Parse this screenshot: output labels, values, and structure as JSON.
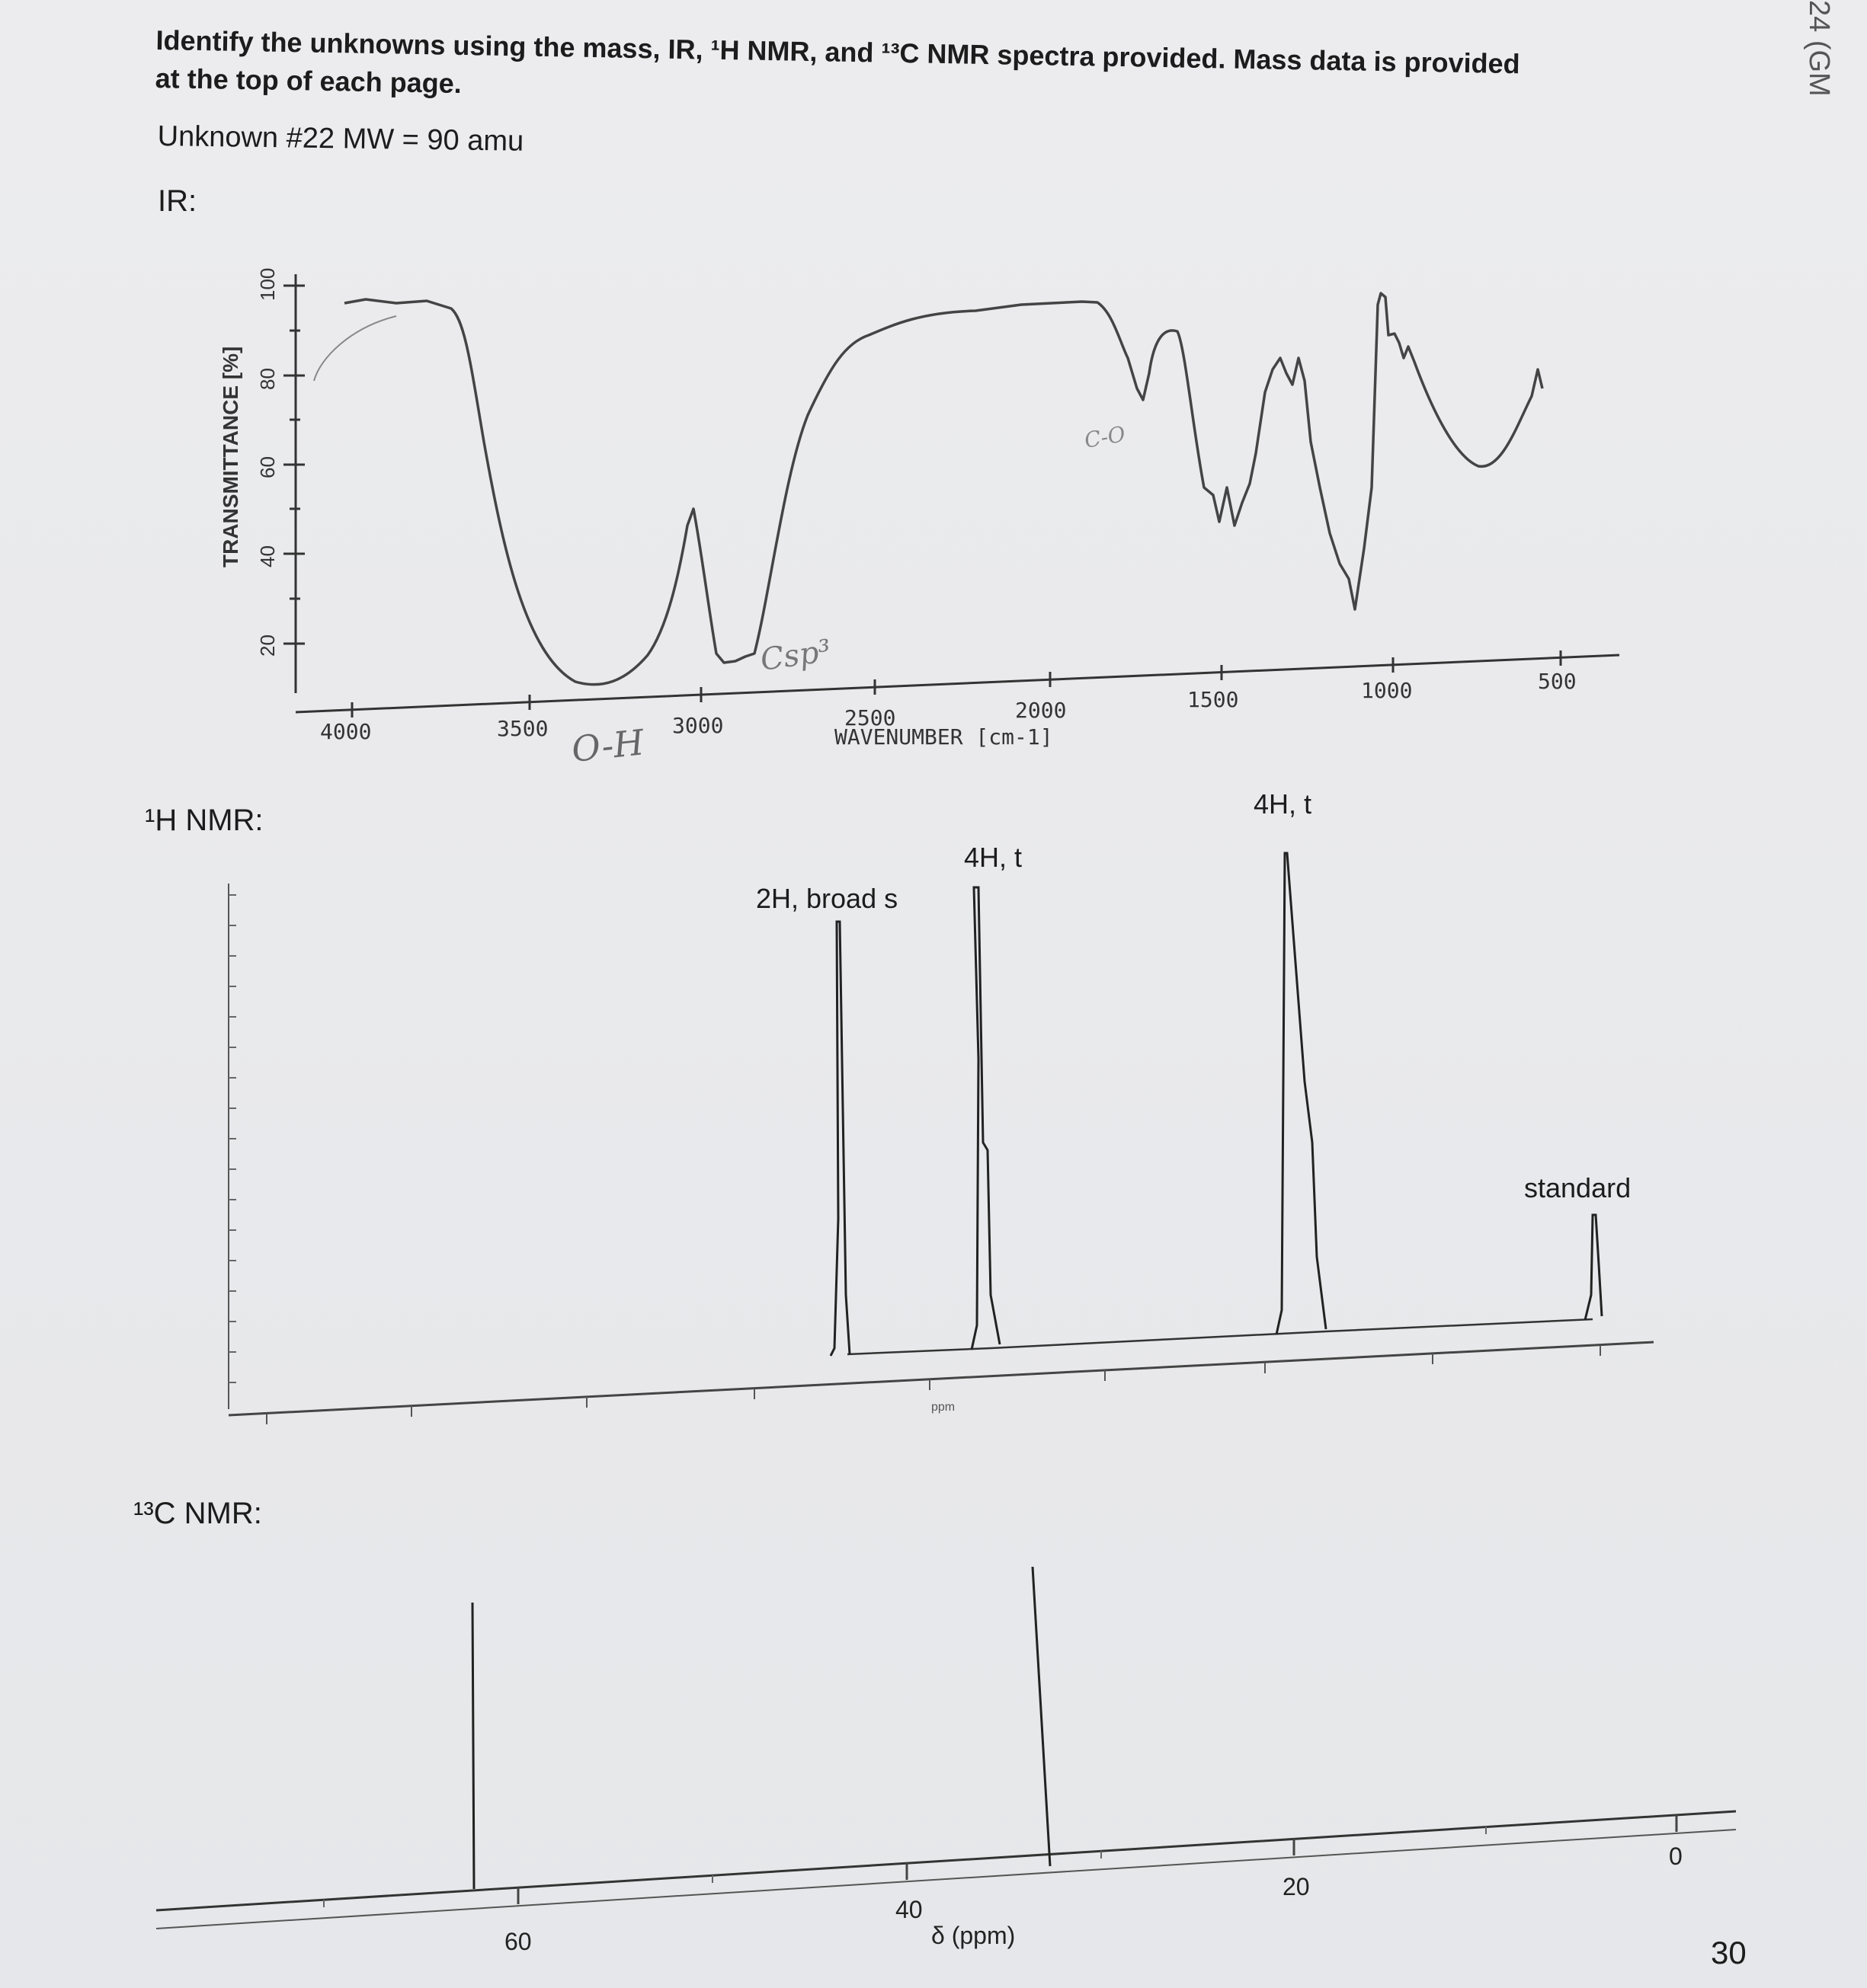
{
  "header": {
    "instructions_line1": "Identify the unknowns using the mass, IR, ¹H NMR, and ¹³C NMR spectra provided. Mass data is provided",
    "instructions_line2": "at the top of each page.",
    "unknown_label": "Unknown #22 MW = 90 amu"
  },
  "sections": {
    "ir": "IR:",
    "h_nmr": "¹H NMR:",
    "c_nmr": "¹³C NMR:"
  },
  "ir_spectrum": {
    "y_axis_title": "TRANSMITTANCE [%]",
    "y_ticks": [
      "20",
      "40",
      "60",
      "80",
      "100"
    ],
    "x_ticks": [
      "4000",
      "3500",
      "3000",
      "2500",
      "2000",
      "1500",
      "1000",
      "500"
    ],
    "x_axis_title": "WAVENUMBER [cm-1]",
    "annotations": {
      "oh": "O-H",
      "csp3": "Csp³",
      "co": "C-O"
    }
  },
  "h_nmr_spectrum": {
    "peak_labels": [
      "2H, broad s",
      "4H, t",
      "4H, t",
      "standard"
    ],
    "axis_unit": "ppm"
  },
  "c_nmr_spectrum": {
    "x_ticks": [
      "60",
      "40",
      "20",
      "0"
    ],
    "x_axis_title": "δ (ppm)"
  },
  "page_number": "30",
  "margin_note": "24 (GM"
}
